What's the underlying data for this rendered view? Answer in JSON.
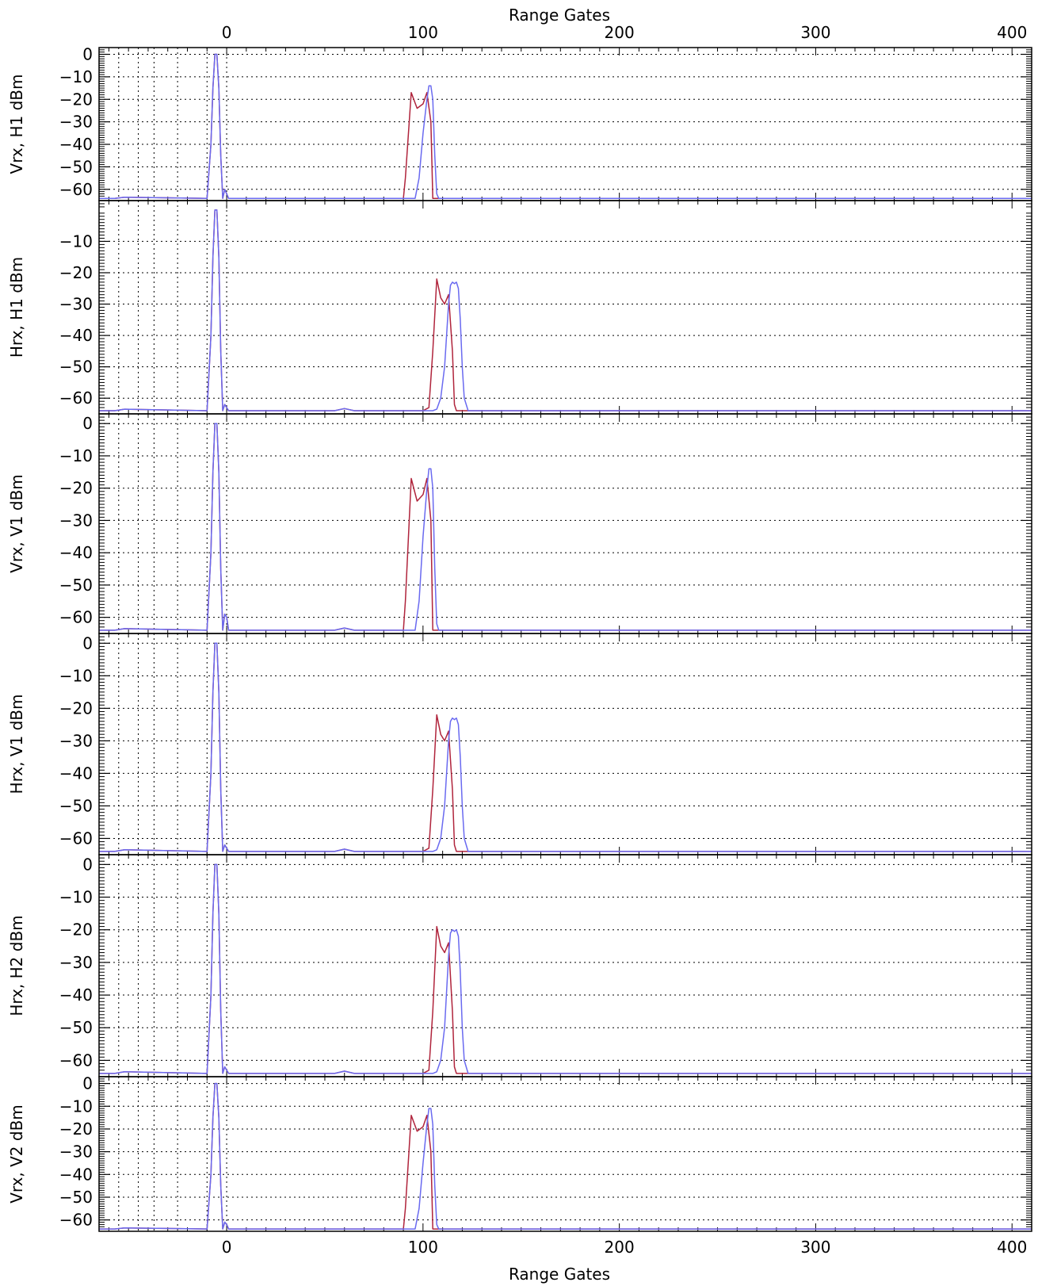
{
  "chart_data": {
    "type": "line",
    "x_axis": {
      "label": "Range Gates",
      "xlim": [
        -65,
        410
      ],
      "ticks": [
        0,
        100,
        200,
        300,
        400
      ],
      "tick_labels": [
        "0",
        "100",
        "200",
        "300",
        "400"
      ]
    },
    "colors": {
      "red": "#b0243c",
      "blue": "#6a6af0"
    },
    "vertical_markers": [
      -55,
      -45,
      -37,
      -25,
      -10,
      0
    ],
    "panels": [
      {
        "ylabel": "Vrx, H1 dBm",
        "ylim": [
          -65,
          3
        ],
        "yticks": [
          0,
          -10,
          -20,
          -30,
          -40,
          -50,
          -60
        ],
        "ytick_labels": [
          "0",
          "−10",
          "−20",
          "−30",
          "−40",
          "−50",
          "−60"
        ],
        "series": [
          {
            "color": "red",
            "x": [
              -65,
              -57,
              -52,
              -10,
              -8,
              -7,
              -6,
              -5,
              -4,
              -3,
              -2,
              -1,
              0,
              1,
              2,
              90,
              91,
              94,
              97,
              100,
              102,
              104,
              105,
              106,
              410
            ],
            "y": [
              -64,
              -64,
              -63.5,
              -64,
              -40,
              -15,
              0,
              0,
              -15,
              -45,
              -64,
              -60,
              -62,
              -64,
              -64,
              -64,
              -55,
              -17,
              -24,
              -22,
              -17,
              -30,
              -64,
              -64,
              -64
            ]
          },
          {
            "color": "blue",
            "x": [
              -65,
              -57,
              -52,
              -10,
              -8,
              -7,
              -6,
              -5,
              -4,
              -3,
              -2,
              -1,
              0,
              1,
              2,
              96,
              98,
              100,
              102,
              103,
              104,
              105,
              106,
              107,
              108,
              410
            ],
            "y": [
              -64,
              -64,
              -63.5,
              -64,
              -40,
              -15,
              0,
              0,
              -15,
              -45,
              -64,
              -60,
              -62,
              -64,
              -64,
              -64,
              -55,
              -35,
              -20,
              -14,
              -14,
              -20,
              -45,
              -62,
              -64,
              -64
            ]
          }
        ]
      },
      {
        "ylabel": "Hrx, H1 dBm",
        "ylim": [
          -65,
          3
        ],
        "yticks": [
          -10,
          -20,
          -30,
          -40,
          -50,
          -60
        ],
        "ytick_labels": [
          "−10",
          "−20",
          "−30",
          "−40",
          "−50",
          "−60"
        ],
        "series": [
          {
            "color": "red",
            "x": [
              -65,
              -57,
              -52,
              -10,
              -8,
              -7,
              -6,
              -5,
              -4,
              -3,
              -2,
              -1,
              0,
              1,
              2,
              55,
              60,
              65,
              100,
              103,
              105,
              107,
              109,
              111,
              113,
              115,
              116,
              117,
              118,
              410
            ],
            "y": [
              -64,
              -64,
              -63.5,
              -64,
              -40,
              -15,
              0,
              0,
              -15,
              -45,
              -64,
              -62,
              -63,
              -64,
              -64,
              -64,
              -63.3,
              -64,
              -64,
              -63,
              -45,
              -22,
              -28,
              -30,
              -27,
              -45,
              -62,
              -64,
              -64,
              -64
            ]
          },
          {
            "color": "blue",
            "x": [
              -65,
              -57,
              -52,
              -10,
              -8,
              -7,
              -6,
              -5,
              -4,
              -3,
              -2,
              -1,
              0,
              1,
              2,
              55,
              60,
              65,
              105,
              107,
              109,
              111,
              113,
              114,
              115,
              116,
              117,
              118,
              119,
              120,
              121,
              123,
              125,
              410
            ],
            "y": [
              -64,
              -64,
              -63.5,
              -64,
              -40,
              -15,
              0,
              0,
              -15,
              -45,
              -64,
              -62,
              -63,
              -64,
              -64,
              -64,
              -63.3,
              -64,
              -64,
              -63.5,
              -60,
              -50,
              -30,
              -24,
              -23,
              -23.5,
              -23,
              -25,
              -35,
              -50,
              -60,
              -64,
              -64,
              -64
            ]
          }
        ]
      },
      {
        "ylabel": "Vrx, V1 dBm",
        "ylim": [
          -65,
          3
        ],
        "yticks": [
          0,
          -10,
          -20,
          -30,
          -40,
          -50,
          -60
        ],
        "ytick_labels": [
          "0",
          "−10",
          "−20",
          "−30",
          "−40",
          "−50",
          "−60"
        ],
        "series": [
          {
            "color": "red",
            "x": [
              -65,
              -57,
              -52,
              -10,
              -8,
              -7,
              -6,
              -5,
              -4,
              -3,
              -2,
              -1,
              0,
              1,
              2,
              55,
              60,
              65,
              90,
              91,
              94,
              97,
              100,
              102,
              104,
              105,
              106,
              410
            ],
            "y": [
              -64,
              -64,
              -63.5,
              -64,
              -40,
              -15,
              0,
              0,
              -15,
              -45,
              -64,
              -59,
              -60,
              -64,
              -64,
              -64,
              -63.3,
              -64,
              -64,
              -55,
              -17,
              -24,
              -22,
              -17,
              -30,
              -64,
              -64,
              -64
            ]
          },
          {
            "color": "blue",
            "x": [
              -65,
              -57,
              -52,
              -10,
              -8,
              -7,
              -6,
              -5,
              -4,
              -3,
              -2,
              -1,
              0,
              1,
              2,
              55,
              60,
              65,
              96,
              98,
              100,
              102,
              103,
              104,
              105,
              106,
              107,
              108,
              410
            ],
            "y": [
              -64,
              -64,
              -63.5,
              -64,
              -40,
              -15,
              0,
              0,
              -15,
              -45,
              -64,
              -59,
              -60,
              -64,
              -64,
              -64,
              -63.3,
              -64,
              -64,
              -55,
              -35,
              -20,
              -14,
              -14,
              -20,
              -45,
              -62,
              -64,
              -64
            ]
          }
        ]
      },
      {
        "ylabel": "Hrx, V1 dBm",
        "ylim": [
          -65,
          3
        ],
        "yticks": [
          0,
          -10,
          -20,
          -30,
          -40,
          -50,
          -60
        ],
        "ytick_labels": [
          "0",
          "−10",
          "−20",
          "−30",
          "−40",
          "−50",
          "−60"
        ],
        "series": [
          {
            "color": "red",
            "x": [
              -65,
              -57,
              -52,
              -10,
              -8,
              -7,
              -6,
              -5,
              -4,
              -3,
              -2,
              -1,
              0,
              1,
              2,
              55,
              60,
              65,
              100,
              103,
              105,
              107,
              109,
              111,
              113,
              115,
              116,
              117,
              118,
              410
            ],
            "y": [
              -64,
              -64,
              -63.5,
              -64,
              -40,
              -15,
              0,
              0,
              -15,
              -45,
              -64,
              -62,
              -63,
              -64,
              -64,
              -64,
              -63.3,
              -64,
              -64,
              -63,
              -45,
              -22,
              -28,
              -30,
              -27,
              -45,
              -62,
              -64,
              -64,
              -64
            ]
          },
          {
            "color": "blue",
            "x": [
              -65,
              -57,
              -52,
              -10,
              -8,
              -7,
              -6,
              -5,
              -4,
              -3,
              -2,
              -1,
              0,
              1,
              2,
              55,
              60,
              65,
              105,
              107,
              109,
              111,
              113,
              114,
              115,
              116,
              117,
              118,
              119,
              120,
              121,
              123,
              125,
              410
            ],
            "y": [
              -64,
              -64,
              -63.5,
              -64,
              -40,
              -15,
              0,
              0,
              -15,
              -45,
              -64,
              -62,
              -63,
              -64,
              -64,
              -64,
              -63.3,
              -64,
              -64,
              -63.5,
              -60,
              -50,
              -30,
              -24,
              -23,
              -23.5,
              -23,
              -25,
              -35,
              -50,
              -60,
              -64,
              -64,
              -64
            ]
          }
        ]
      },
      {
        "ylabel": "Hrx, H2 dBm",
        "ylim": [
          -65,
          3
        ],
        "yticks": [
          0,
          -10,
          -20,
          -30,
          -40,
          -50,
          -60
        ],
        "ytick_labels": [
          "0",
          "−10",
          "−20",
          "−30",
          "−40",
          "−50",
          "−60"
        ],
        "series": [
          {
            "color": "red",
            "x": [
              -65,
              -57,
              -52,
              -10,
              -8,
              -7,
              -6,
              -5,
              -4,
              -3,
              -2,
              -1,
              0,
              1,
              2,
              55,
              60,
              65,
              100,
              103,
              105,
              107,
              109,
              111,
              113,
              115,
              116,
              117,
              118,
              410
            ],
            "y": [
              -64,
              -64,
              -63.5,
              -64,
              -40,
              -15,
              0,
              0,
              -15,
              -45,
              -64,
              -62,
              -63,
              -64,
              -64,
              -64,
              -63.3,
              -64,
              -64,
              -63,
              -45,
              -19,
              -25,
              -27,
              -24,
              -45,
              -62,
              -64,
              -64,
              -64
            ]
          },
          {
            "color": "blue",
            "x": [
              -65,
              -57,
              -52,
              -10,
              -8,
              -7,
              -6,
              -5,
              -4,
              -3,
              -2,
              -1,
              0,
              1,
              2,
              55,
              60,
              65,
              105,
              107,
              109,
              111,
              113,
              114,
              115,
              116,
              117,
              118,
              119,
              120,
              121,
              123,
              125,
              410
            ],
            "y": [
              -64,
              -64,
              -63.5,
              -64,
              -40,
              -15,
              0,
              0,
              -15,
              -45,
              -64,
              -62,
              -63,
              -64,
              -64,
              -64,
              -63.3,
              -64,
              -64,
              -63.5,
              -60,
              -50,
              -28,
              -21,
              -20,
              -20.5,
              -20,
              -22,
              -33,
              -50,
              -60,
              -64,
              -64,
              -64
            ]
          }
        ]
      },
      {
        "ylabel": "Vrx, V2 dBm",
        "ylim": [
          -65,
          3
        ],
        "yticks": [
          0,
          -10,
          -20,
          -30,
          -40,
          -50,
          -60
        ],
        "ytick_labels": [
          "0",
          "−10",
          "−20",
          "−30",
          "−40",
          "−50",
          "−60"
        ],
        "series": [
          {
            "color": "red",
            "x": [
              -65,
              -57,
              -52,
              -10,
              -8,
              -7,
              -6,
              -5,
              -4,
              -3,
              -2,
              -1,
              0,
              1,
              2,
              90,
              91,
              94,
              97,
              100,
              102,
              104,
              105,
              106,
              410
            ],
            "y": [
              -64,
              -64,
              -63.5,
              -64,
              -40,
              -15,
              0,
              0,
              -15,
              -45,
              -64,
              -61,
              -62,
              -64,
              -64,
              -64,
              -55,
              -14,
              -21,
              -19,
              -14,
              -30,
              -64,
              -64,
              -64
            ]
          },
          {
            "color": "blue",
            "x": [
              -65,
              -57,
              -52,
              -10,
              -8,
              -7,
              -6,
              -5,
              -4,
              -3,
              -2,
              -1,
              0,
              1,
              2,
              96,
              98,
              100,
              102,
              103,
              104,
              105,
              106,
              107,
              108,
              410
            ],
            "y": [
              -64,
              -64,
              -63.5,
              -64,
              -40,
              -15,
              0,
              0,
              -15,
              -45,
              -64,
              -61,
              -62,
              -64,
              -64,
              -64,
              -55,
              -35,
              -18,
              -11,
              -11,
              -18,
              -45,
              -62,
              -64,
              -64
            ]
          }
        ]
      }
    ]
  }
}
